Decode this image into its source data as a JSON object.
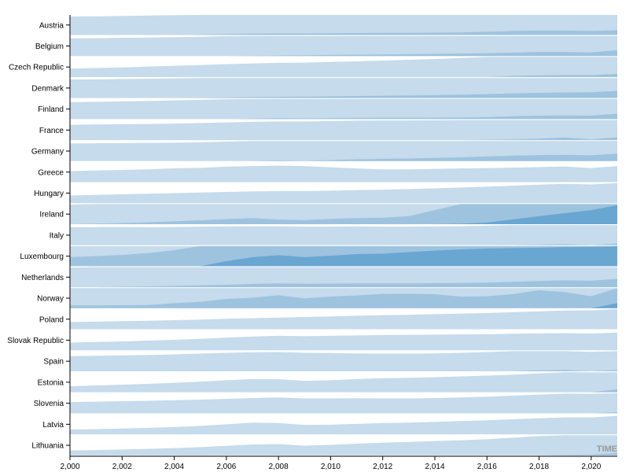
{
  "chart_data": {
    "type": "area",
    "subtype": "horizon",
    "bands": 3,
    "band_colors": [
      "#c6dbeb",
      "#9ec3df",
      "#6aa6d2"
    ],
    "x_axis_label": "TIME",
    "xlim": [
      2000,
      2021
    ],
    "y_band_size": 1,
    "x_ticks": [
      "2,000",
      "2,002",
      "2,004",
      "2,006",
      "2,008",
      "2,010",
      "2,012",
      "2,014",
      "2,016",
      "2,018",
      "2,020"
    ],
    "x_tick_values": [
      2000,
      2002,
      2004,
      2006,
      2008,
      2010,
      2012,
      2014,
      2016,
      2018,
      2020
    ],
    "x": [
      2000,
      2001,
      2002,
      2003,
      2004,
      2005,
      2006,
      2007,
      2008,
      2009,
      2010,
      2011,
      2012,
      2013,
      2014,
      2015,
      2016,
      2017,
      2018,
      2019,
      2020,
      2021
    ],
    "series": [
      {
        "name": "Austria",
        "values": [
          0.92,
          0.93,
          0.95,
          0.97,
          0.99,
          1.02,
          1.05,
          1.07,
          1.08,
          1.08,
          1.09,
          1.1,
          1.11,
          1.11,
          1.12,
          1.13,
          1.16,
          1.2,
          1.22,
          1.22,
          1.2,
          1.24
        ]
      },
      {
        "name": "Belgium",
        "values": [
          0.88,
          0.89,
          0.91,
          0.92,
          0.94,
          0.96,
          0.99,
          1.01,
          1.03,
          1.04,
          1.06,
          1.07,
          1.08,
          1.09,
          1.11,
          1.12,
          1.14,
          1.17,
          1.2,
          1.2,
          1.18,
          1.3
        ]
      },
      {
        "name": "Czech Republic",
        "values": [
          0.42,
          0.45,
          0.48,
          0.52,
          0.56,
          0.6,
          0.64,
          0.68,
          0.71,
          0.72,
          0.75,
          0.78,
          0.82,
          0.86,
          0.9,
          0.95,
          1.0,
          1.05,
          1.08,
          1.1,
          1.1,
          1.16
        ]
      },
      {
        "name": "Denmark",
        "values": [
          0.92,
          0.93,
          0.95,
          0.96,
          0.98,
          1.01,
          1.03,
          1.05,
          1.06,
          1.07,
          1.09,
          1.1,
          1.12,
          1.13,
          1.15,
          1.17,
          1.2,
          1.23,
          1.26,
          1.28,
          1.29,
          1.36
        ]
      },
      {
        "name": "Finland",
        "values": [
          0.84,
          0.86,
          0.88,
          0.9,
          0.93,
          0.96,
          0.99,
          1.02,
          1.05,
          1.03,
          1.05,
          1.06,
          1.07,
          1.07,
          1.07,
          1.08,
          1.1,
          1.14,
          1.17,
          1.18,
          1.17,
          1.27
        ]
      },
      {
        "name": "France",
        "values": [
          0.76,
          0.78,
          0.79,
          0.8,
          0.82,
          0.85,
          0.88,
          0.91,
          0.93,
          0.93,
          0.95,
          0.97,
          0.98,
          0.98,
          0.99,
          1.0,
          1.02,
          1.04,
          1.07,
          1.13,
          1.04,
          1.14
        ]
      },
      {
        "name": "Germany",
        "values": [
          0.88,
          0.89,
          0.9,
          0.91,
          0.92,
          0.94,
          0.97,
          1.0,
          1.03,
          1.01,
          1.05,
          1.09,
          1.11,
          1.13,
          1.16,
          1.19,
          1.23,
          1.27,
          1.3,
          1.31,
          1.29,
          1.37
        ]
      },
      {
        "name": "Greece",
        "values": [
          0.55,
          0.58,
          0.61,
          0.64,
          0.69,
          0.71,
          0.77,
          0.8,
          0.82,
          0.8,
          0.74,
          0.68,
          0.64,
          0.64,
          0.66,
          0.68,
          0.7,
          0.72,
          0.75,
          0.78,
          0.7,
          0.8
        ]
      },
      {
        "name": "Hungary",
        "values": [
          0.38,
          0.41,
          0.44,
          0.47,
          0.5,
          0.53,
          0.56,
          0.58,
          0.6,
          0.6,
          0.62,
          0.65,
          0.67,
          0.7,
          0.74,
          0.78,
          0.82,
          0.87,
          0.92,
          0.96,
          0.93,
          1.0
        ]
      },
      {
        "name": "Ireland",
        "values": [
          0.98,
          1.02,
          1.05,
          1.09,
          1.14,
          1.19,
          1.25,
          1.3,
          1.23,
          1.2,
          1.26,
          1.3,
          1.32,
          1.4,
          1.7,
          2.02,
          2.08,
          2.24,
          2.4,
          2.55,
          2.7,
          2.95
        ]
      },
      {
        "name": "Italy",
        "values": [
          0.9,
          0.9,
          0.91,
          0.9,
          0.91,
          0.92,
          0.93,
          0.94,
          0.94,
          0.92,
          0.92,
          0.93,
          0.92,
          0.92,
          0.93,
          0.94,
          0.97,
          1.0,
          1.03,
          1.05,
          1.0,
          1.09
        ]
      },
      {
        "name": "Luxembourg",
        "values": [
          1.45,
          1.5,
          1.56,
          1.65,
          1.8,
          2.0,
          2.25,
          2.45,
          2.55,
          2.45,
          2.52,
          2.6,
          2.62,
          2.7,
          2.78,
          2.84,
          2.88,
          2.9,
          2.92,
          2.95,
          2.96,
          3.25
        ]
      },
      {
        "name": "Netherlands",
        "values": [
          0.98,
          1.0,
          1.02,
          1.04,
          1.06,
          1.09,
          1.12,
          1.16,
          1.19,
          1.17,
          1.18,
          1.19,
          1.19,
          1.19,
          1.2,
          1.21,
          1.23,
          1.27,
          1.31,
          1.34,
          1.32,
          1.42
        ]
      },
      {
        "name": "Norway",
        "values": [
          1.14,
          1.14,
          1.15,
          1.16,
          1.25,
          1.32,
          1.46,
          1.52,
          1.65,
          1.49,
          1.58,
          1.64,
          1.71,
          1.72,
          1.7,
          1.58,
          1.6,
          1.7,
          1.9,
          1.8,
          1.6,
          2.25
        ]
      },
      {
        "name": "Poland",
        "values": [
          0.36,
          0.38,
          0.4,
          0.42,
          0.45,
          0.48,
          0.52,
          0.55,
          0.58,
          0.61,
          0.64,
          0.67,
          0.7,
          0.72,
          0.75,
          0.78,
          0.81,
          0.85,
          0.89,
          0.93,
          0.94,
          1.0
        ]
      },
      {
        "name": "Slovak Republic",
        "values": [
          0.38,
          0.41,
          0.44,
          0.48,
          0.52,
          0.57,
          0.63,
          0.68,
          0.72,
          0.7,
          0.72,
          0.74,
          0.76,
          0.77,
          0.78,
          0.79,
          0.8,
          0.82,
          0.84,
          0.85,
          0.83,
          0.88
        ]
      },
      {
        "name": "Spain",
        "values": [
          0.75,
          0.77,
          0.79,
          0.81,
          0.84,
          0.88,
          0.92,
          0.95,
          0.96,
          0.92,
          0.91,
          0.89,
          0.88,
          0.88,
          0.89,
          0.92,
          0.96,
          1.0,
          1.04,
          1.06,
          0.97,
          1.06
        ]
      },
      {
        "name": "Estonia",
        "values": [
          0.3,
          0.34,
          0.38,
          0.42,
          0.47,
          0.53,
          0.6,
          0.66,
          0.65,
          0.57,
          0.6,
          0.66,
          0.7,
          0.72,
          0.75,
          0.79,
          0.83,
          0.88,
          0.94,
          1.0,
          0.99,
          1.15
        ]
      },
      {
        "name": "Slovenia",
        "values": [
          0.56,
          0.58,
          0.6,
          0.62,
          0.65,
          0.68,
          0.72,
          0.76,
          0.79,
          0.74,
          0.74,
          0.75,
          0.74,
          0.74,
          0.76,
          0.79,
          0.83,
          0.88,
          0.93,
          0.98,
          0.97,
          1.05
        ]
      },
      {
        "name": "Latvia",
        "values": [
          0.24,
          0.26,
          0.29,
          0.32,
          0.36,
          0.42,
          0.5,
          0.58,
          0.56,
          0.47,
          0.48,
          0.52,
          0.56,
          0.58,
          0.62,
          0.66,
          0.7,
          0.75,
          0.8,
          0.84,
          0.84,
          0.92
        ]
      },
      {
        "name": "Lithuania",
        "values": [
          0.24,
          0.26,
          0.29,
          0.32,
          0.36,
          0.41,
          0.47,
          0.54,
          0.56,
          0.48,
          0.52,
          0.58,
          0.63,
          0.67,
          0.71,
          0.75,
          0.8,
          0.88,
          0.96,
          1.02,
          1.04,
          1.12
        ]
      }
    ]
  }
}
